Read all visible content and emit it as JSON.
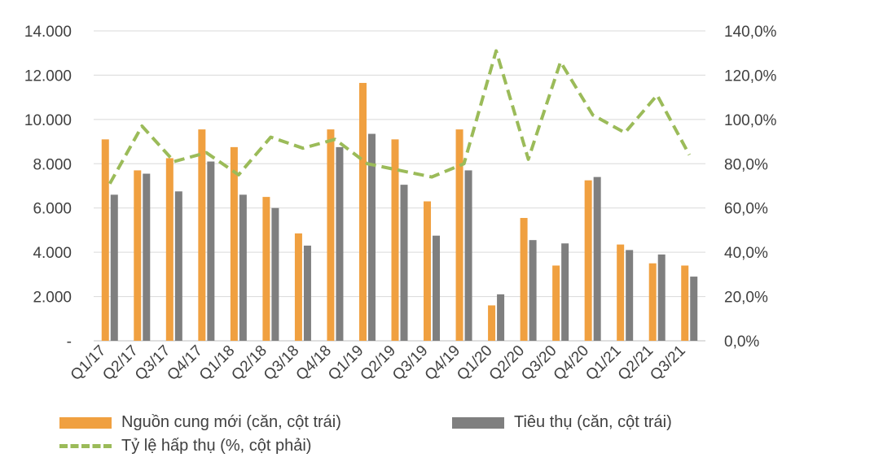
{
  "chart_data": {
    "type": "bar+line",
    "categories": [
      "Q1/17",
      "Q2/17",
      "Q3/17",
      "Q4/17",
      "Q1/18",
      "Q2/18",
      "Q3/18",
      "Q4/18",
      "Q1/19",
      "Q2/19",
      "Q3/19",
      "Q4/19",
      "Q1/20",
      "Q2/20",
      "Q3/20",
      "Q4/20",
      "Q1/21",
      "Q2/21",
      "Q3/21"
    ],
    "series": [
      {
        "name": "Nguồn cung mới (căn, cột trái)",
        "type": "bar",
        "axis": "left",
        "color": "#f0a040",
        "values": [
          9100,
          7700,
          8250,
          9550,
          8750,
          6500,
          4850,
          9550,
          11650,
          9100,
          6300,
          9550,
          1600,
          5550,
          3400,
          7250,
          4350,
          3500,
          3400
        ]
      },
      {
        "name": "Tiêu thụ (căn, cột trái)",
        "type": "bar",
        "axis": "left",
        "color": "#7f7f7f",
        "values": [
          6600,
          7550,
          6750,
          8100,
          6600,
          6000,
          4300,
          8750,
          9350,
          7050,
          4750,
          7700,
          2100,
          4550,
          4400,
          7400,
          4100,
          3900,
          2900
        ]
      },
      {
        "name": "Tỷ lệ hấp thụ (%, cột phải)",
        "type": "line",
        "axis": "right",
        "color": "#9bbb59",
        "values": [
          71,
          97,
          81,
          85,
          75,
          92,
          87,
          91,
          80,
          77,
          74,
          80,
          131,
          82,
          126,
          102,
          94,
          111,
          84
        ]
      }
    ],
    "y_left": {
      "min": 0,
      "max": 14000,
      "ticks": [
        "-",
        "2.000",
        "4.000",
        "6.000",
        "8.000",
        "10.000",
        "12.000",
        "14.000"
      ]
    },
    "y_right": {
      "min": 0,
      "max": 140,
      "ticks": [
        "0,0%",
        "20,0%",
        "40,0%",
        "60,0%",
        "80,0%",
        "100,0%",
        "120,0%",
        "140,0%"
      ]
    },
    "grid": true,
    "legend_position": "bottom"
  }
}
